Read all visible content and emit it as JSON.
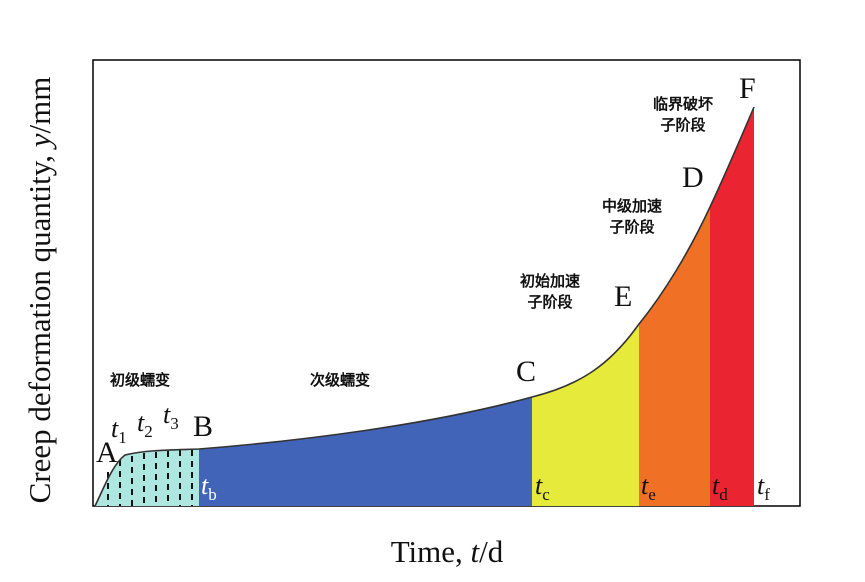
{
  "axes": {
    "ylabel_prefix": "Creep deformation quantity, ",
    "ylabel_var": "y",
    "ylabel_unit": "/mm",
    "xlabel_prefix": "Time, ",
    "xlabel_var": "t",
    "xlabel_unit": "/d"
  },
  "points": {
    "A": "A",
    "B": "B",
    "C": "C",
    "D": "D",
    "E": "E",
    "F": "F"
  },
  "time_marks": {
    "t_symbol": "t",
    "t1_sub": "1",
    "t2_sub": "2",
    "t3_sub": "3",
    "tb_sub": "b",
    "tc_sub": "c",
    "te_sub": "e",
    "td_sub": "d",
    "tf_sub": "f"
  },
  "stages": {
    "primary": "初级蠕变",
    "secondary": "次级蠕变",
    "initial_accel_line1": "初始加速",
    "initial_accel_line2": "子阶段",
    "mid_accel_line1": "中级加速",
    "mid_accel_line2": "子阶段",
    "critical_line1": "临界破坏",
    "critical_line2": "子阶段"
  },
  "colors": {
    "primary": "#aee6e0",
    "secondary": "#4264b8",
    "initial_accel": "#e6ea3a",
    "mid_accel": "#f07126",
    "critical": "#ea2430",
    "frame": "#000000"
  }
}
